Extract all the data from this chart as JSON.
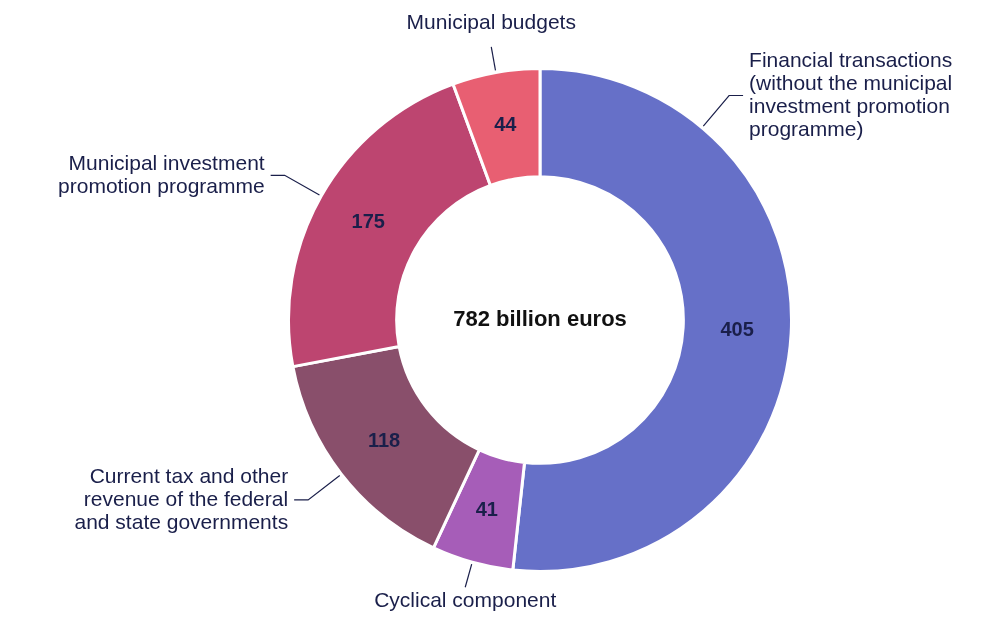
{
  "chart_data": {
    "type": "donut",
    "categories": [
      "Financial transactions (without the municipal investment promotion programme)",
      "Cyclical component",
      "Current tax and other revenue of the federal and state governments",
      "Municipal investment promotion programme",
      "Municipal budgets"
    ],
    "values": [
      405,
      41,
      118,
      175,
      44
    ],
    "colors": [
      "#6670c8",
      "#a65db8",
      "#894f6b",
      "#bd4570",
      "#e85f72"
    ],
    "data_labels": true,
    "legend": false,
    "annotations": [
      "782 billion euros"
    ]
  }
}
